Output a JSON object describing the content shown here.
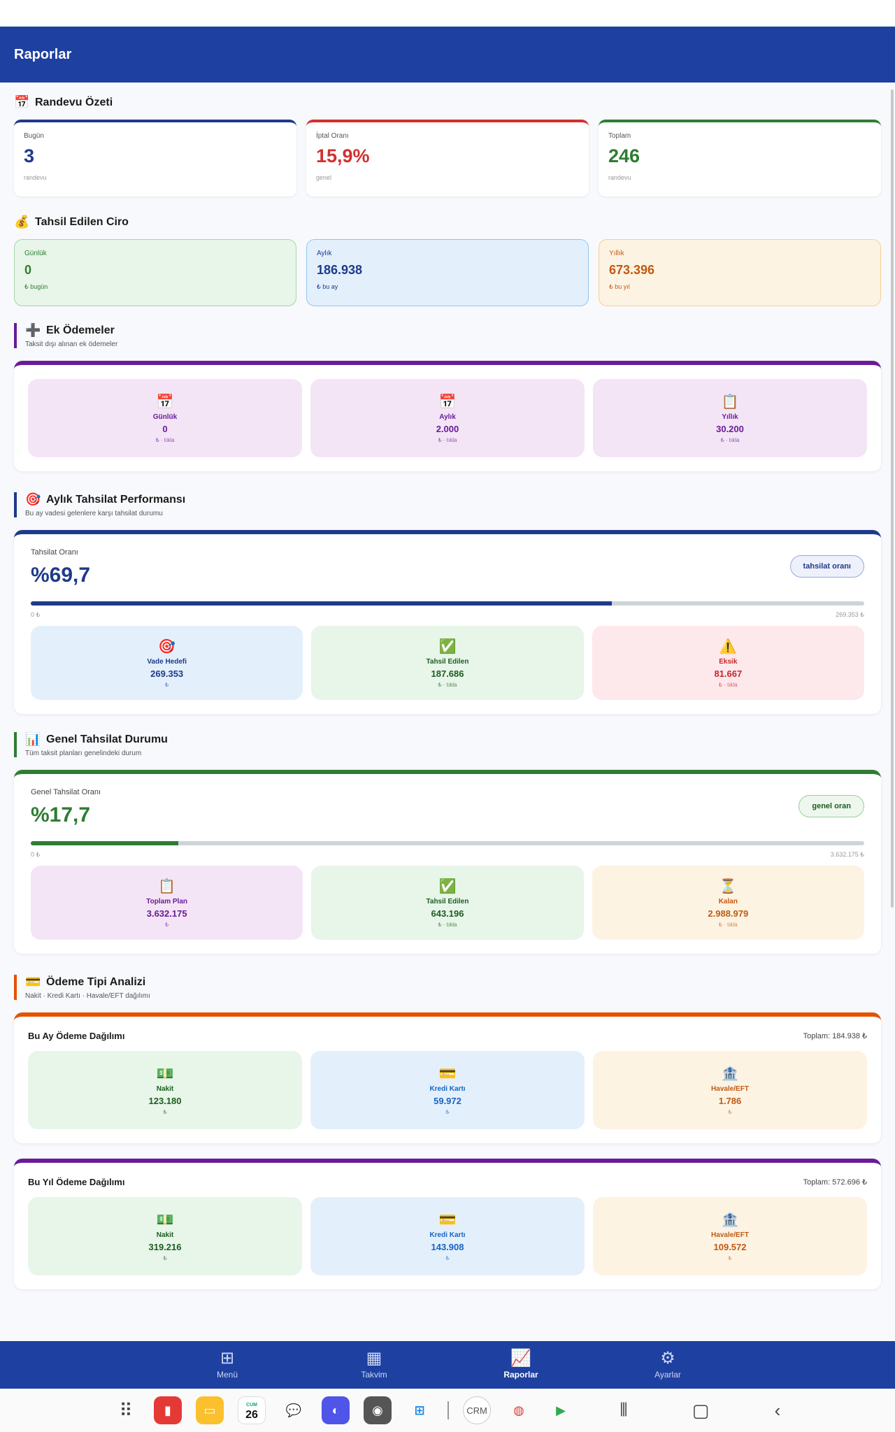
{
  "app": {
    "title": "Raporlar"
  },
  "appointments": {
    "title": "Randevu Özeti",
    "icon": "calendar-icon",
    "cards": [
      {
        "label": "Bugün",
        "value": "3",
        "sub": "randevu",
        "color": "#1e3a8a"
      },
      {
        "label": "İptal Oranı",
        "value": "15,9%",
        "sub": "genel",
        "color": "#d32f2f"
      },
      {
        "label": "Toplam",
        "value": "246",
        "sub": "randevu",
        "color": "#2e7d32"
      }
    ]
  },
  "revenue": {
    "title": "Tahsil Edilen Ciro",
    "icon": "money-bag-icon",
    "cards": [
      {
        "label": "Günlük",
        "value": "0",
        "sub": "₺ bugün"
      },
      {
        "label": "Aylık",
        "value": "186.938",
        "sub": "₺ bu ay"
      },
      {
        "label": "Yıllık",
        "value": "673.396",
        "sub": "₺ bu yıl"
      }
    ]
  },
  "extra": {
    "title": "Ek Ödemeler",
    "subtitle": "Taksit dışı alınan ek ödemeler",
    "tiles": [
      {
        "label": "Günlük",
        "value": "0",
        "sub": "₺ · tıkla"
      },
      {
        "label": "Aylık",
        "value": "2.000",
        "sub": "₺ · tıkla"
      },
      {
        "label": "Yıllık",
        "value": "30.200",
        "sub": "₺ · tıkla"
      }
    ]
  },
  "monthly": {
    "title": "Aylık Tahsilat Performansı",
    "subtitle": "Bu ay vadesi gelenlere karşı tahsilat durumu",
    "rate_label": "Tahsilat Oranı",
    "rate_value": "%69,7",
    "rate_fraction": 0.697,
    "pill": "tahsilat oranı",
    "range_min": "0 ₺",
    "range_max": "269.353 ₺",
    "tiles": [
      {
        "label": "Vade Hedefi",
        "value": "269.353",
        "sub": "₺"
      },
      {
        "label": "Tahsil Edilen",
        "value": "187.686",
        "sub": "₺ · tıkla"
      },
      {
        "label": "Eksik",
        "value": "81.667",
        "sub": "₺ · tıkla"
      }
    ]
  },
  "general": {
    "title": "Genel Tahsilat Durumu",
    "subtitle": "Tüm taksit planları genelindeki durum",
    "rate_label": "Genel Tahsilat Oranı",
    "rate_value": "%17,7",
    "rate_fraction": 0.177,
    "pill": "genel oran",
    "range_min": "0 ₺",
    "range_max": "3.632.175 ₺",
    "tiles": [
      {
        "label": "Toplam Plan",
        "value": "3.632.175",
        "sub": "₺"
      },
      {
        "label": "Tahsil Edilen",
        "value": "643.196",
        "sub": "₺ · tıkla"
      },
      {
        "label": "Kalan",
        "value": "2.988.979",
        "sub": "₺ · tıkla"
      }
    ]
  },
  "payment": {
    "title": "Ödeme Tipi Analizi",
    "subtitle": "Nakit · Kredi Kartı · Havale/EFT dağılımı",
    "month": {
      "title": "Bu Ay Ödeme Dağılımı",
      "total": "Toplam: 184.938 ₺",
      "tiles": [
        {
          "label": "Nakit",
          "value": "123.180",
          "sub": "₺"
        },
        {
          "label": "Kredi Kartı",
          "value": "59.972",
          "sub": "₺"
        },
        {
          "label": "Havale/EFT",
          "value": "1.786",
          "sub": "₺"
        }
      ]
    },
    "year": {
      "title": "Bu Yıl Ödeme Dağılımı",
      "total": "Toplam: 572.696 ₺",
      "tiles": [
        {
          "label": "Nakit",
          "value": "319.216",
          "sub": "₺"
        },
        {
          "label": "Kredi Kartı",
          "value": "143.908",
          "sub": "₺"
        },
        {
          "label": "Havale/EFT",
          "value": "109.572",
          "sub": "₺"
        }
      ]
    }
  },
  "nav": {
    "items": [
      {
        "label": "Menü",
        "icon": "grid-icon"
      },
      {
        "label": "Takvim",
        "icon": "calendar-icon"
      },
      {
        "label": "Raporlar",
        "icon": "chart-icon",
        "active": true
      },
      {
        "label": "Ayarlar",
        "icon": "gear-icon"
      }
    ]
  },
  "taskbar": {
    "calendar_day": "26",
    "calendar_weekday": "CUM",
    "crm_label": "CRM"
  }
}
